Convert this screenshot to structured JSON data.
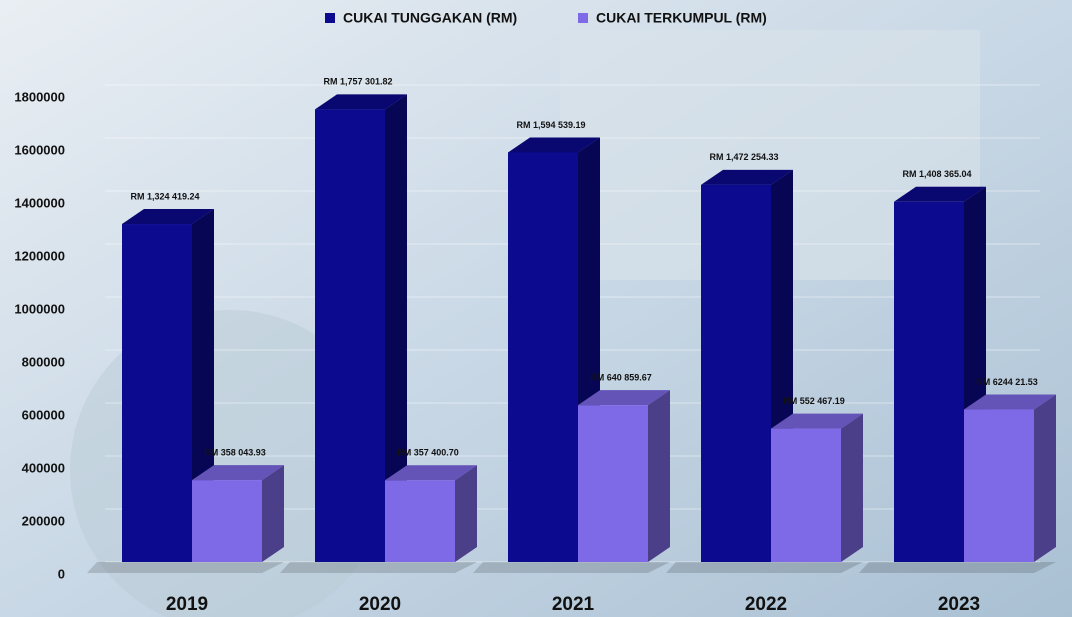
{
  "chart_data": {
    "type": "bar",
    "categories": [
      "2019",
      "2020",
      "2021",
      "2022",
      "2023"
    ],
    "series": [
      {
        "name": "CUKAI TUNGGAKAN (RM)",
        "color": "#0c0a8e",
        "values": [
          1324419.24,
          1757301.82,
          1594539.19,
          1472254.33,
          1408365.04
        ],
        "value_labels": [
          "RM 1,324 419.24",
          "RM 1,757 301.82",
          "RM 1,594 539.19",
          "RM 1,472 254.33",
          "RM 1,408 365.04"
        ]
      },
      {
        "name": "CUKAI TERKUMPUL (RM)",
        "color": "#7e6ae6",
        "values": [
          358043.93,
          357400.7,
          640859.67,
          552467.19,
          624421.53
        ],
        "value_labels": [
          "RM 358 043.93",
          "RM 357 400.70",
          "RM 640 859.67",
          "RM 552 467.19",
          "RM 6244 21.53"
        ]
      }
    ],
    "ylim": [
      0,
      1800000
    ],
    "yticks": [
      0,
      200000,
      400000,
      600000,
      800000,
      1000000,
      1200000,
      1400000,
      1600000,
      1800000
    ],
    "grid": true,
    "legend": "top"
  }
}
